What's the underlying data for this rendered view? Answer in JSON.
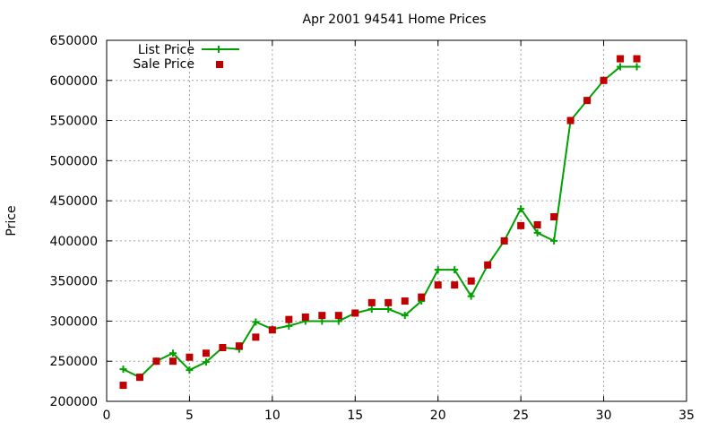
{
  "chart_data": {
    "type": "line",
    "title": "Apr 2001 94541 Home Prices",
    "xlabel": "",
    "ylabel": "Price",
    "xlim": [
      0,
      35
    ],
    "ylim": [
      200000,
      650000
    ],
    "xticks": [
      0,
      5,
      10,
      15,
      20,
      25,
      30,
      35
    ],
    "yticks": [
      200000,
      250000,
      300000,
      350000,
      400000,
      450000,
      500000,
      550000,
      600000,
      650000
    ],
    "grid": true,
    "legend_position": "top-left",
    "series": [
      {
        "name": "List Price",
        "style": "line-plus",
        "color": "#00a000",
        "x": [
          1,
          2,
          3,
          4,
          5,
          6,
          7,
          8,
          9,
          10,
          11,
          12,
          13,
          14,
          15,
          16,
          17,
          18,
          19,
          20,
          21,
          22,
          23,
          24,
          25,
          26,
          27,
          28,
          29,
          30,
          31,
          32
        ],
        "y": [
          240000,
          230000,
          250000,
          260000,
          239000,
          249000,
          267000,
          265000,
          299000,
          290000,
          294000,
          300000,
          300000,
          300000,
          310000,
          315000,
          315000,
          307000,
          325000,
          364000,
          364000,
          331000,
          370000,
          400000,
          440000,
          410000,
          400000,
          550000,
          575000,
          600000,
          617000,
          617000
        ]
      },
      {
        "name": "Sale Price",
        "style": "points-square",
        "color": "#c00000",
        "x": [
          1,
          2,
          3,
          4,
          5,
          6,
          7,
          8,
          9,
          10,
          11,
          12,
          13,
          14,
          15,
          16,
          17,
          18,
          19,
          20,
          21,
          22,
          23,
          24,
          25,
          26,
          27,
          28,
          29,
          30,
          31,
          32
        ],
        "y": [
          220000,
          230000,
          250000,
          250000,
          255000,
          260000,
          267000,
          269000,
          280000,
          289000,
          302000,
          305000,
          307000,
          307000,
          310000,
          323000,
          323000,
          325000,
          330000,
          345000,
          345000,
          350000,
          370000,
          400000,
          419000,
          420000,
          430000,
          550000,
          575000,
          600000,
          627000,
          627000
        ]
      }
    ]
  }
}
